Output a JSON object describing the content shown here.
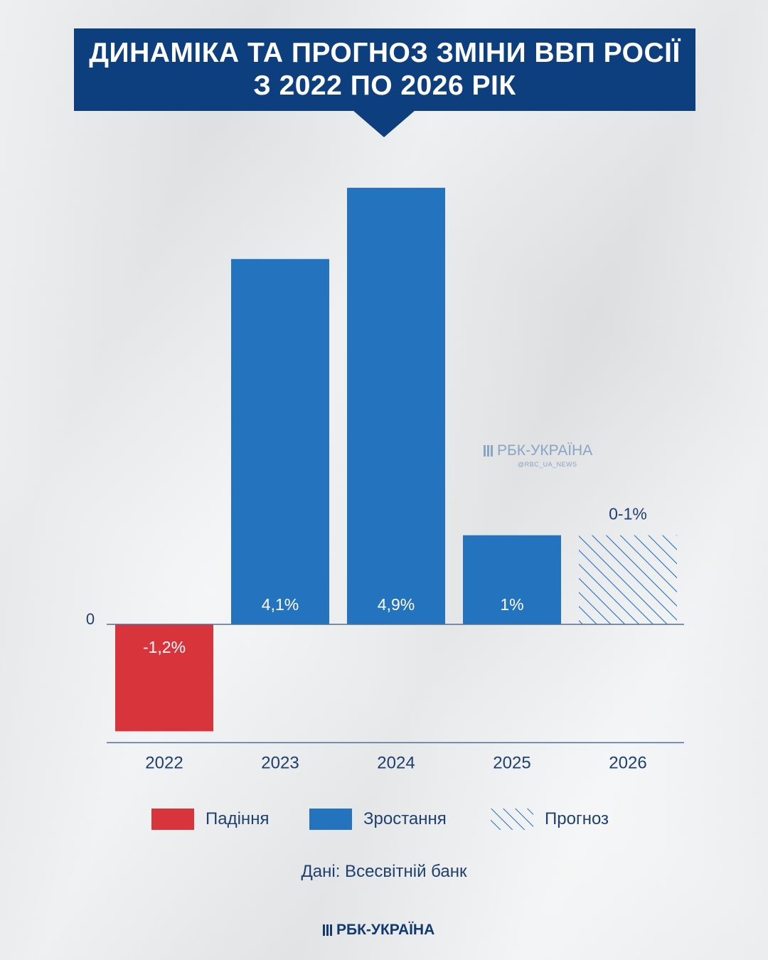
{
  "header": {
    "title_line1": "ДИНАМІКА ТА ПРОГНОЗ ЗМІНИ ВВП РОСІЇ",
    "title_line2": "З 2022 ПО 2026 РІК"
  },
  "chart_data": {
    "type": "bar",
    "title": "ДИНАМІКА ТА ПРОГНОЗ ЗМІНИ ВВП РОСІЇ З 2022 ПО 2026 РІК",
    "categories": [
      "2022",
      "2023",
      "2024",
      "2025",
      "2026"
    ],
    "values": [
      -1.2,
      4.1,
      4.9,
      1.0,
      1.0
    ],
    "value_labels": [
      "-1,2%",
      "4,1%",
      "4,9%",
      "1%",
      "0-1%"
    ],
    "bar_kinds": [
      "fall",
      "growth",
      "growth",
      "growth",
      "forecast"
    ],
    "zero_label": "0",
    "ylim": [
      -1.2,
      4.9
    ],
    "grid": false,
    "legend_position": "bottom",
    "colors": {
      "fall": "#d8343c",
      "growth": "#2473bf",
      "forecast": "#2473bf",
      "axis": "#4d6f96",
      "text": "#1f3f6f"
    }
  },
  "legend": [
    {
      "kind": "fall",
      "label": "Падіння"
    },
    {
      "kind": "growth",
      "label": "Зростання"
    },
    {
      "kind": "forecast",
      "label": "Прогноз"
    }
  ],
  "source": "Дані: Всесвітній банк",
  "watermark": {
    "name": "РБК-УКРАЇНА",
    "handle": "@RBC_UA_NEWS"
  },
  "footer": {
    "brand": "РБК-УКРАЇНА"
  }
}
